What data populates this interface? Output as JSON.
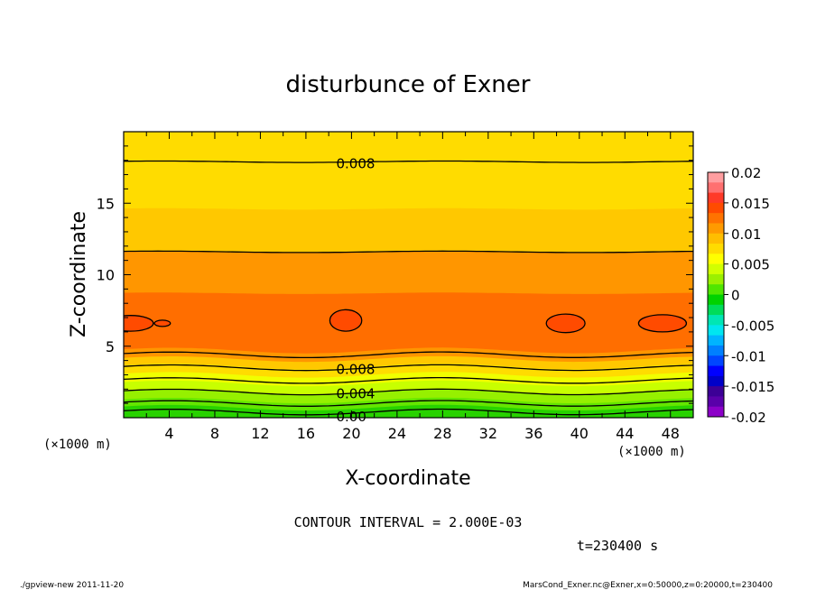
{
  "chart_data": {
    "type": "contour",
    "title": "disturbunce of Exner",
    "xlabel": "X-coordinate",
    "ylabel": "Z-coordinate",
    "x_unit": "(×1000 m)",
    "y_unit": "(×1000 m)",
    "xlim": [
      0,
      50
    ],
    "ylim": [
      0,
      20
    ],
    "x_ticks": [
      4,
      8,
      12,
      16,
      20,
      24,
      28,
      32,
      36,
      40,
      44,
      48
    ],
    "y_ticks": [
      5,
      10,
      15
    ],
    "contour_interval_text": "CONTOUR INTERVAL = 2.000E-03",
    "time_text": "t=230400 s",
    "contour_labels": [
      {
        "text": "0.008",
        "x": 18.5,
        "z": 17.9
      },
      {
        "text": "0.008",
        "x": 18.5,
        "z": 3.5
      },
      {
        "text": "0.004",
        "x": 18.5,
        "z": 1.8
      },
      {
        "text": "0.00",
        "x": 18.5,
        "z": 0.2
      }
    ],
    "bands": [
      {
        "z_top": 20.0,
        "color": "#ffdc00"
      },
      {
        "z_top": 14.6,
        "color": "#ffc800"
      },
      {
        "z_top": 11.6,
        "color": "#ff9600"
      },
      {
        "z_top": 8.7,
        "color": "#ff6e00"
      },
      {
        "z_top": 4.7,
        "color": "#ff9600"
      },
      {
        "z_top": 4.1,
        "color": "#ffc800"
      },
      {
        "z_top": 3.6,
        "color": "#ffdc00"
      },
      {
        "z_top": 3.0,
        "color": "#f0ff00"
      },
      {
        "z_top": 2.4,
        "color": "#c8ff00"
      },
      {
        "z_top": 1.8,
        "color": "#96f000"
      },
      {
        "z_top": 1.2,
        "color": "#64e600"
      },
      {
        "z_top": 0.7,
        "color": "#28d200"
      }
    ],
    "contour_lines_z": [
      17.9,
      11.6,
      4.4,
      3.5,
      2.6,
      1.8,
      1.0,
      0.4
    ],
    "closed_contours": [
      {
        "x": 0.6,
        "z": 6.6,
        "rx": 2.0,
        "rz": 0.55
      },
      {
        "x": 3.4,
        "z": 6.6,
        "rx": 0.7,
        "rz": 0.22
      },
      {
        "x": 19.5,
        "z": 6.8,
        "rx": 1.4,
        "rz": 0.75
      },
      {
        "x": 38.8,
        "z": 6.6,
        "rx": 1.7,
        "rz": 0.65
      },
      {
        "x": 47.3,
        "z": 6.6,
        "rx": 2.1,
        "rz": 0.6
      }
    ],
    "colorbar": {
      "labels": [
        "0.02",
        "0.015",
        "0.01",
        "0.005",
        "0",
        "-0.005",
        "-0.01",
        "-0.015",
        "-0.02"
      ],
      "colors": [
        "#ff9ea0",
        "#ff7070",
        "#ff3a28",
        "#ff4b00",
        "#ff7300",
        "#ff9a00",
        "#ffbe00",
        "#ffdc00",
        "#ffff00",
        "#d2ff00",
        "#9bf000",
        "#50e600",
        "#00d200",
        "#00dc5a",
        "#00e6b4",
        "#00e6f0",
        "#00b4ff",
        "#0080ff",
        "#0046ff",
        "#0000ff",
        "#0000c8",
        "#3c0096",
        "#5a00aa",
        "#8c00c8"
      ]
    }
  },
  "footer": {
    "left": "./gpview-new   2011-11-20",
    "right": "MarsCond_Exner.nc@Exner,x=0:50000,z=0:20000,t=230400"
  }
}
